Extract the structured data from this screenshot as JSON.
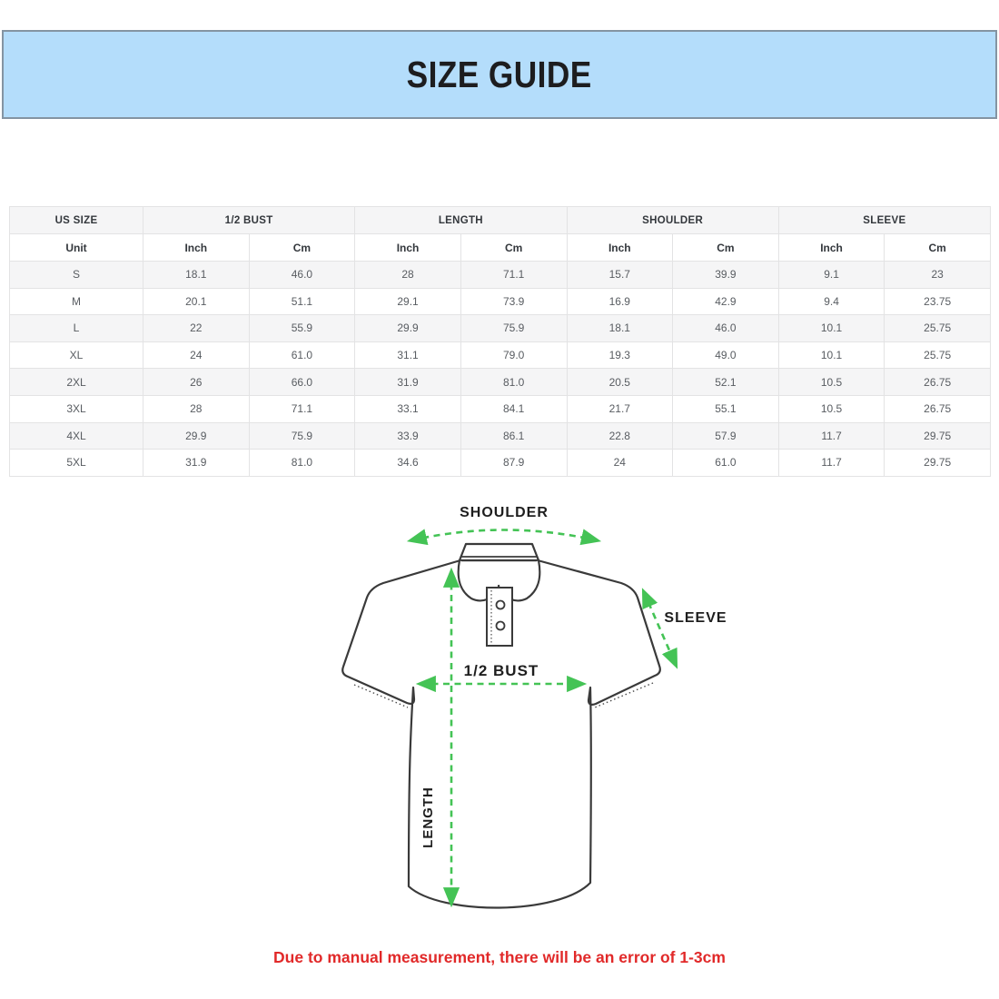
{
  "header": {
    "title": "SIZE GUIDE",
    "bg_color": "#b4ddfb",
    "border_color": "#8494a2"
  },
  "table": {
    "groups": [
      "US SIZE",
      "1/2 BUST",
      "LENGTH",
      "SHOULDER",
      "SLEEVE"
    ],
    "unit_row": [
      "Unit",
      "Inch",
      "Cm",
      "Inch",
      "Cm",
      "Inch",
      "Cm",
      "Inch",
      "Cm"
    ],
    "rows": [
      [
        "S",
        "18.1",
        "46.0",
        "28",
        "71.1",
        "15.7",
        "39.9",
        "9.1",
        "23"
      ],
      [
        "M",
        "20.1",
        "51.1",
        "29.1",
        "73.9",
        "16.9",
        "42.9",
        "9.4",
        "23.75"
      ],
      [
        "L",
        "22",
        "55.9",
        "29.9",
        "75.9",
        "18.1",
        "46.0",
        "10.1",
        "25.75"
      ],
      [
        "XL",
        "24",
        "61.0",
        "31.1",
        "79.0",
        "19.3",
        "49.0",
        "10.1",
        "25.75"
      ],
      [
        "2XL",
        "26",
        "66.0",
        "31.9",
        "81.0",
        "20.5",
        "52.1",
        "10.5",
        "26.75"
      ],
      [
        "3XL",
        "28",
        "71.1",
        "33.1",
        "84.1",
        "21.7",
        "55.1",
        "10.5",
        "26.75"
      ],
      [
        "4XL",
        "29.9",
        "75.9",
        "33.9",
        "86.1",
        "22.8",
        "57.9",
        "11.7",
        "29.75"
      ],
      [
        "5XL",
        "31.9",
        "81.0",
        "34.6",
        "87.9",
        "24",
        "61.0",
        "11.7",
        "29.75"
      ]
    ]
  },
  "diagram": {
    "labels": {
      "shoulder": "SHOULDER",
      "sleeve": "SLEEVE",
      "bust": "1/2 BUST",
      "length": "LENGTH"
    },
    "arrow_color": "#44c355",
    "outline_color": "#3a3a3a"
  },
  "footer": {
    "note": "Due to manual measurement, there will be an error of 1-3cm",
    "color": "#e12929"
  }
}
